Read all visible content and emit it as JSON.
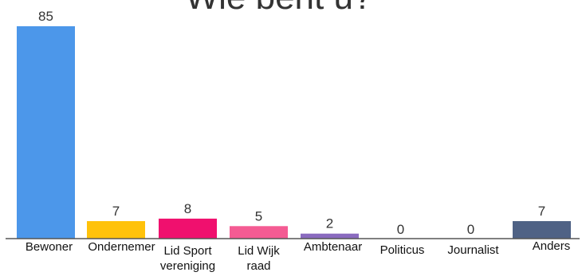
{
  "chart_data": {
    "type": "bar",
    "title": "Wie bent u?",
    "categories": [
      "Bewoner",
      "Ondernemer",
      "Lid Sport vereniging",
      "Lid Wijk raad",
      "Ambtenaar",
      "Politicus",
      "Journalist",
      "Anders"
    ],
    "category_lines": [
      [
        "Bewoner"
      ],
      [
        "Ondernemer"
      ],
      [
        "Lid Sport",
        "vereniging"
      ],
      [
        "Lid Wijk",
        "raad"
      ],
      [
        "Ambtenaar"
      ],
      [
        "Politicus"
      ],
      [
        "Journalist"
      ],
      [
        "Anders"
      ]
    ],
    "values": [
      85,
      7,
      8,
      5,
      2,
      0,
      0,
      7
    ],
    "colors": [
      "#4c97ea",
      "#ffc20a",
      "#f0106e",
      "#f45b93",
      "#8a6bbf",
      "#4c97ea",
      "#4c97ea",
      "#4f6285"
    ],
    "ylim": [
      0,
      85
    ],
    "grid": false,
    "xlabel": "",
    "ylabel": ""
  }
}
